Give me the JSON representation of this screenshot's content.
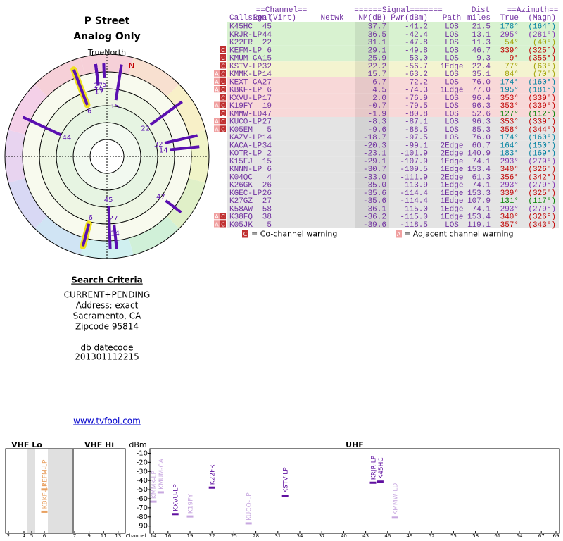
{
  "header": {
    "title": "P Street",
    "subtitle": "Analog Only"
  },
  "radar": {
    "north_label": "TrueNorth",
    "magnetic_label": "N",
    "spokes": [
      {
        "label": "45",
        "azimuth": 178,
        "nm": 37.7
      },
      {
        "label": "44",
        "azimuth": 295,
        "nm": 36.5
      },
      {
        "label": "22",
        "azimuth": 54,
        "nm": 31.1
      },
      {
        "label": "6",
        "azimuth": 339,
        "nm": 29.1,
        "highlight": true
      },
      {
        "label": "15",
        "azimuth": 9,
        "nm": 25.9
      },
      {
        "label": "32",
        "azimuth": 77,
        "nm": 22.2
      },
      {
        "label": "14",
        "azimuth": 84,
        "nm": 15.7
      },
      {
        "label": "27",
        "azimuth": 174,
        "nm": 6.7
      },
      {
        "label": "6",
        "azimuth": 195,
        "nm": 4.5,
        "highlight": true
      },
      {
        "label": "17",
        "azimuth": 353,
        "nm": 2.0
      },
      {
        "label": "19",
        "azimuth": 353,
        "nm": -0.7
      },
      {
        "label": "47",
        "azimuth": 127,
        "nm": -1.9
      },
      {
        "label": "27",
        "azimuth": 353,
        "nm": -8.3
      },
      {
        "label": "5",
        "azimuth": 358,
        "nm": -9.6
      },
      {
        "label": "14",
        "azimuth": 174,
        "nm": -18.7
      }
    ]
  },
  "search": {
    "title": "Search Criteria",
    "lines": [
      "CURRENT+PENDING",
      "Address: exact",
      "Sacramento, CA",
      "Zipcode 95814"
    ],
    "datecode_label": "db datecode",
    "datecode": "201301112215",
    "link": "www.tvfool.com"
  },
  "table": {
    "groups": [
      "==Channel==",
      "======Signal=======",
      "Dist",
      "==Azimuth=="
    ],
    "columns": {
      "callsign": "Callsign",
      "real": "Real",
      "virt": "(Virt)",
      "netwk": "Netwk",
      "nm": "NM(dB)",
      "pwr": "Pwr(dBm)",
      "path": "Path",
      "dist": "miles",
      "true": "True",
      "magn": "(Magn)"
    },
    "rows": [
      {
        "callsign": "K45HC",
        "real": "45",
        "nm": "37.7",
        "pwr": "-41.2",
        "path": "LOS",
        "dist": "21.5",
        "true": "178°",
        "magn": "(164°)"
      },
      {
        "callsign": "KRJR-LP",
        "real": "44",
        "nm": "36.5",
        "pwr": "-42.4",
        "path": "LOS",
        "dist": "13.1",
        "true": "295°",
        "magn": "(281°)"
      },
      {
        "callsign": "K22FR",
        "real": "22",
        "nm": "31.1",
        "pwr": "-47.8",
        "path": "LOS",
        "dist": "11.3",
        "true": "54°",
        "magn": "(40°)"
      },
      {
        "warnings": [
          "C"
        ],
        "callsign": "KEFM-LP",
        "real": "6",
        "nm": "29.1",
        "pwr": "-49.8",
        "path": "LOS",
        "dist": "46.7",
        "true": "339°",
        "magn": "(325°)"
      },
      {
        "warnings": [
          "C"
        ],
        "callsign": "KMUM-CA",
        "real": "15",
        "nm": "25.9",
        "pwr": "-53.0",
        "path": "LOS",
        "dist": "9.3",
        "true": "9°",
        "magn": "(355°)"
      },
      {
        "warnings": [
          "C"
        ],
        "callsign": "KSTV-LP",
        "real": "32",
        "nm": "22.2",
        "pwr": "-56.7",
        "path": "1Edge",
        "dist": "22.4",
        "true": "77°",
        "magn": "(63°)"
      },
      {
        "warnings": [
          "A",
          "C"
        ],
        "callsign": "KMMK-LP",
        "real": "14",
        "nm": "15.7",
        "pwr": "-63.2",
        "path": "LOS",
        "dist": "35.1",
        "true": "84°",
        "magn": "(70°)"
      },
      {
        "warnings": [
          "A",
          "C"
        ],
        "callsign": "KEXT-CA",
        "real": "27",
        "nm": "6.7",
        "pwr": "-72.2",
        "path": "LOS",
        "dist": "76.0",
        "true": "174°",
        "magn": "(160°)"
      },
      {
        "warnings": [
          "A",
          "C"
        ],
        "callsign": "KBKF-LP",
        "real": "6",
        "nm": "4.5",
        "pwr": "-74.3",
        "path": "1Edge",
        "dist": "77.0",
        "true": "195°",
        "magn": "(181°)"
      },
      {
        "warnings": [
          "C"
        ],
        "callsign": "KXVU-LP",
        "real": "17",
        "nm": "2.0",
        "pwr": "-76.9",
        "path": "LOS",
        "dist": "96.4",
        "true": "353°",
        "magn": "(339°)"
      },
      {
        "warnings": [
          "A",
          "C"
        ],
        "callsign": "K19FY",
        "real": "19",
        "nm": "-0.7",
        "pwr": "-79.5",
        "path": "LOS",
        "dist": "96.3",
        "true": "353°",
        "magn": "(339°)"
      },
      {
        "warnings": [
          "C"
        ],
        "callsign": "KMMW-LD",
        "real": "47",
        "nm": "-1.9",
        "pwr": "-80.8",
        "path": "LOS",
        "dist": "52.6",
        "true": "127°",
        "magn": "(112°)"
      },
      {
        "warnings": [
          "A",
          "C"
        ],
        "callsign": "KUCO-LP",
        "real": "27",
        "nm": "-8.3",
        "pwr": "-87.1",
        "path": "LOS",
        "dist": "96.3",
        "true": "353°",
        "magn": "(339°)"
      },
      {
        "warnings": [
          "A",
          "C"
        ],
        "callsign": "K05EM",
        "real": "5",
        "nm": "-9.6",
        "pwr": "-88.5",
        "path": "LOS",
        "dist": "85.3",
        "true": "358°",
        "magn": "(344°)"
      },
      {
        "callsign": "KAZV-LP",
        "real": "14",
        "nm": "-18.7",
        "pwr": "-97.5",
        "path": "LOS",
        "dist": "76.0",
        "true": "174°",
        "magn": "(160°)"
      },
      {
        "callsign": "KACA-LP",
        "real": "34",
        "nm": "-20.3",
        "pwr": "-99.1",
        "path": "2Edge",
        "dist": "60.7",
        "true": "164°",
        "magn": "(150°)"
      },
      {
        "callsign": "KOTR-LP",
        "real": "2",
        "nm": "-23.1",
        "pwr": "-101.9",
        "path": "2Edge",
        "dist": "140.9",
        "true": "183°",
        "magn": "(169°)"
      },
      {
        "callsign": "K15FJ",
        "real": "15",
        "nm": "-29.1",
        "pwr": "-107.9",
        "path": "1Edge",
        "dist": "74.1",
        "true": "293°",
        "magn": "(279°)"
      },
      {
        "callsign": "KNNN-LP",
        "real": "6",
        "nm": "-30.7",
        "pwr": "-109.5",
        "path": "1Edge",
        "dist": "153.4",
        "true": "340°",
        "magn": "(326°)"
      },
      {
        "callsign": "K04QC",
        "real": "4",
        "nm": "-33.0",
        "pwr": "-111.9",
        "path": "2Edge",
        "dist": "61.3",
        "true": "356°",
        "magn": "(342°)"
      },
      {
        "callsign": "K26GK",
        "real": "26",
        "nm": "-35.0",
        "pwr": "-113.9",
        "path": "1Edge",
        "dist": "74.1",
        "true": "293°",
        "magn": "(279°)"
      },
      {
        "callsign": "KGEC-LP",
        "real": "26",
        "nm": "-35.6",
        "pwr": "-114.4",
        "path": "1Edge",
        "dist": "153.3",
        "true": "339°",
        "magn": "(325°)"
      },
      {
        "callsign": "K27GZ",
        "real": "27",
        "nm": "-35.6",
        "pwr": "-114.4",
        "path": "1Edge",
        "dist": "107.9",
        "true": "131°",
        "magn": "(117°)"
      },
      {
        "callsign": "K58AW",
        "real": "58",
        "nm": "-36.1",
        "pwr": "-115.0",
        "path": "1Edge",
        "dist": "74.1",
        "true": "293°",
        "magn": "(279°)"
      },
      {
        "warnings": [
          "A",
          "C"
        ],
        "callsign": "K38FQ",
        "real": "38",
        "nm": "-36.2",
        "pwr": "-115.0",
        "path": "1Edge",
        "dist": "153.4",
        "true": "340°",
        "magn": "(326°)"
      },
      {
        "warnings": [
          "A",
          "C"
        ],
        "callsign": "K05JK",
        "real": "5",
        "nm": "-39.6",
        "pwr": "-118.5",
        "path": "LOS",
        "dist": "119.1",
        "true": "357°",
        "magn": "(343°)"
      }
    ],
    "legend": [
      {
        "icon": "C",
        "text": "= Co-channel warning"
      },
      {
        "icon": "A",
        "text": "= Adjacent channel warning"
      }
    ]
  },
  "spectrum": {
    "sections": [
      "VHF Lo",
      "VHF Hi",
      "UHF"
    ],
    "ylabel": "dBm",
    "xlabel": "Channel",
    "ylim": [
      -5,
      -98
    ],
    "yticks": [
      -10,
      -20,
      -30,
      -40,
      -50,
      -60,
      -70,
      -80,
      -90
    ],
    "xticks": [
      2,
      4,
      5,
      6,
      7,
      9,
      11,
      13,
      14,
      16,
      19,
      22,
      25,
      28,
      31,
      34,
      37,
      40,
      43,
      46,
      49,
      52,
      55,
      58,
      61,
      64,
      67,
      69
    ],
    "stations": [
      {
        "name": "KBKF-LP",
        "channel": 6,
        "pwr": -74.3,
        "color": "#e8a060"
      },
      {
        "name": "KEFM-LP",
        "channel": 6,
        "pwr": -49.8,
        "color": "#e8a060"
      },
      {
        "name": "KMMK-LP",
        "channel": 14,
        "pwr": -63.2,
        "color": "#c8a8e0"
      },
      {
        "name": "KMUM-CA",
        "channel": 15,
        "pwr": -53.0,
        "color": "#c8a8e0"
      },
      {
        "name": "KXVU-LP",
        "channel": 17,
        "pwr": -76.9,
        "color": "#6010a0"
      },
      {
        "name": "K19FY",
        "channel": 19,
        "pwr": -79.5,
        "color": "#c8a8e0"
      },
      {
        "name": "K22FR",
        "channel": 22,
        "pwr": -47.8,
        "color": "#6010a0"
      },
      {
        "name": "KUCO-LP",
        "channel": 27,
        "pwr": -87.1,
        "color": "#c8a8e0"
      },
      {
        "name": "KSTV-LP",
        "channel": 32,
        "pwr": -56.7,
        "color": "#6010a0"
      },
      {
        "name": "KRJR-LP",
        "channel": 44,
        "pwr": -42.4,
        "color": "#6010a0"
      },
      {
        "name": "K45HC",
        "channel": 45,
        "pwr": -41.2,
        "color": "#6010a0"
      },
      {
        "name": "KMMW-LD",
        "channel": 47,
        "pwr": -80.8,
        "color": "#c8a8e0"
      }
    ]
  }
}
